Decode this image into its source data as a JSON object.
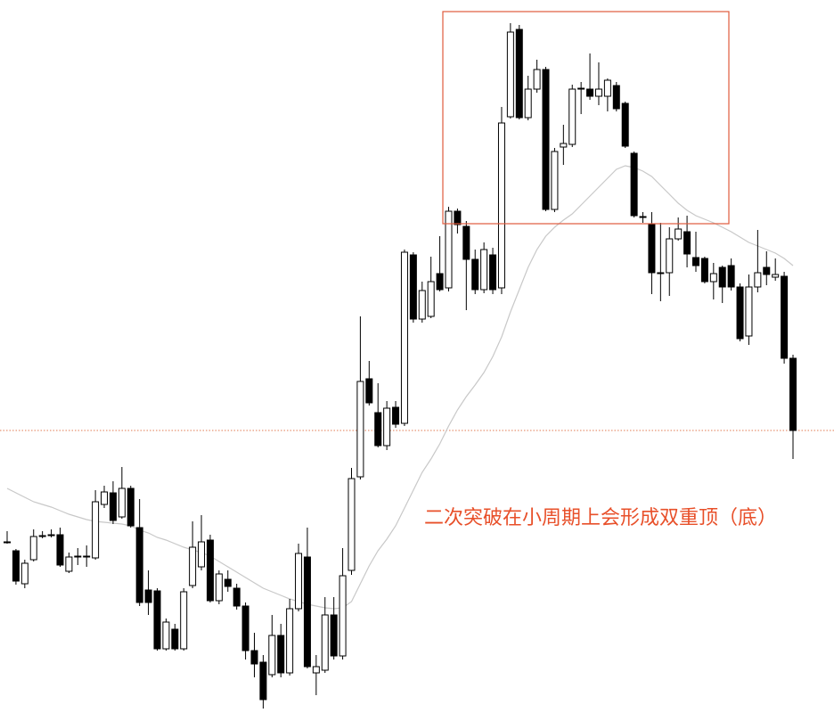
{
  "chart_data": {
    "type": "candlestick",
    "annotation": "二次突破在小周期上会形成双重顶（底）",
    "ylim": [
      0,
      809
    ],
    "up_color": "#ffffff",
    "down_color": "#000000",
    "highlight_color": "#e05a3c",
    "open": [
      201,
      191,
      154,
      181,
      208,
      209,
      209,
      168,
      185,
      185,
      183,
      243,
      256,
      229,
      261,
      217,
      147,
      146,
      81,
      103,
      81,
      152,
      173,
      203,
      135,
      159,
      149,
      129,
      79,
      66,
      52,
      96,
      54,
      126,
      184,
      54,
      57,
      119,
      73,
      169,
      274,
      384,
      346,
      309,
      352,
      334,
      523,
      451,
      454,
      502,
      486,
      572,
      555,
      518,
      484,
      523,
      486,
      678,
      776,
      677,
      709,
      731,
      574,
      644,
      647,
      710,
      709,
      701,
      701,
      713,
      693,
      637,
      566,
      557,
      503,
      503,
      541,
      549,
      520,
      519,
      493,
      509,
      511,
      487,
      432,
      487,
      509,
      498,
      499,
      407
    ],
    "high": [
      213,
      193,
      181,
      215,
      213,
      215,
      217,
      189,
      194,
      197,
      259,
      264,
      269,
      285,
      264,
      249,
      169,
      149,
      115,
      109,
      149,
      224,
      231,
      209,
      169,
      169,
      154,
      133,
      99,
      74,
      119,
      109,
      137,
      199,
      217,
      74,
      139,
      139,
      194,
      284,
      454,
      404,
      379,
      359,
      359,
      529,
      526,
      493,
      521,
      544,
      577,
      575,
      561,
      529,
      537,
      531,
      689,
      783,
      781,
      724,
      742,
      734,
      643,
      669,
      714,
      717,
      749,
      739,
      721,
      717,
      695,
      639,
      571,
      571,
      559,
      554,
      565,
      567,
      549,
      521,
      514,
      511,
      519,
      491,
      501,
      551,
      527,
      519,
      504,
      411
    ],
    "low": [
      199,
      153,
      149,
      179,
      205,
      206,
      173,
      166,
      175,
      173,
      181,
      239,
      221,
      227,
      217,
      129,
      119,
      79,
      79,
      79,
      79,
      149,
      169,
      133,
      131,
      145,
      125,
      69,
      49,
      14,
      49,
      49,
      51,
      123,
      59,
      29,
      54,
      69,
      69,
      164,
      271,
      354,
      307,
      304,
      329,
      331,
      447,
      447,
      452,
      482,
      482,
      547,
      461,
      479,
      480,
      479,
      479,
      676,
      675,
      674,
      705,
      572,
      571,
      624,
      644,
      681,
      697,
      691,
      684,
      684,
      643,
      565,
      559,
      479,
      471,
      477,
      539,
      509,
      504,
      491,
      473,
      469,
      483,
      426,
      422,
      481,
      489,
      494,
      401,
      294
    ],
    "close": [
      201,
      157,
      177,
      207,
      208,
      209,
      175,
      184,
      185,
      185,
      246,
      257,
      225,
      261,
      219,
      133,
      133,
      81,
      111,
      81,
      145,
      195,
      201,
      135,
      165,
      151,
      129,
      79,
      64,
      24,
      96,
      54,
      126,
      188,
      61,
      61,
      119,
      73,
      163,
      272,
      381,
      357,
      309,
      351,
      333,
      526,
      451,
      483,
      493,
      484,
      572,
      557,
      518,
      484,
      529,
      484,
      671,
      773,
      677,
      709,
      731,
      574,
      639,
      648,
      709,
      710,
      701,
      709,
      719,
      687,
      645,
      567,
      566,
      503,
      503,
      541,
      552,
      524,
      511,
      493,
      502,
      487,
      487,
      429,
      487,
      503,
      501,
      501,
      407,
      326
    ],
    "moving_average": {
      "color": "#c8c8c8",
      "values": [
        261,
        256,
        251,
        246,
        243,
        240,
        236,
        232,
        229,
        226,
        224,
        223,
        222,
        221,
        219,
        214,
        211,
        206,
        203,
        199,
        195,
        192,
        189,
        185,
        179,
        173,
        167,
        161,
        155,
        149,
        145,
        141,
        137,
        134,
        131,
        129,
        127,
        126,
        127,
        134,
        154,
        174,
        191,
        204,
        219,
        239,
        259,
        279,
        294,
        311,
        331,
        349,
        364,
        377,
        391,
        409,
        431,
        459,
        484,
        509,
        529,
        544,
        554,
        562,
        569,
        579,
        589,
        599,
        609,
        619,
        623,
        621,
        617,
        611,
        601,
        591,
        581,
        573,
        567,
        563,
        559,
        554,
        549,
        543,
        537,
        533,
        529,
        525,
        519,
        511
      ]
    },
    "price_line": {
      "value": 326,
      "color": "#e07a50"
    }
  }
}
